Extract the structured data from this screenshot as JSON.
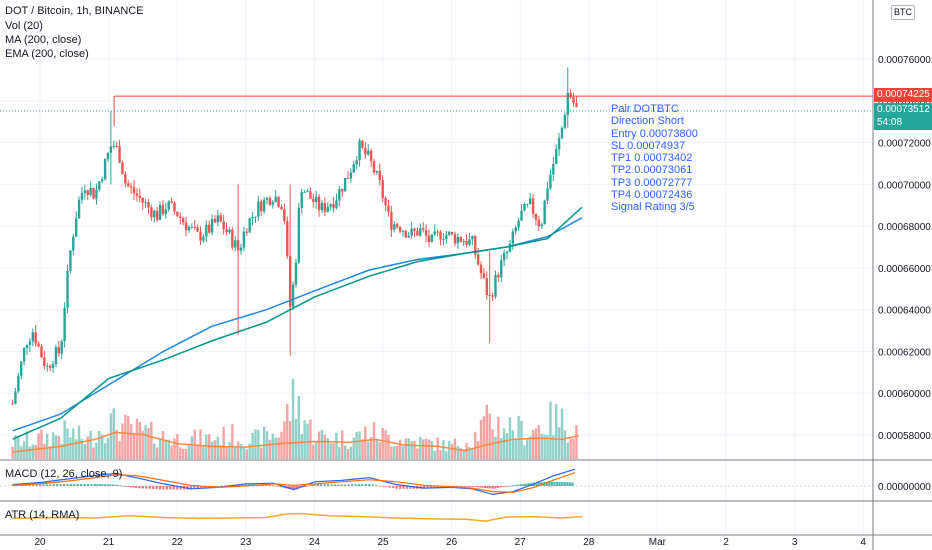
{
  "header": {
    "symbol_title": "DOT / Bitcoin, 1h, BINANCE",
    "indicators": [
      "Vol (20)",
      "MA (200, close)",
      "EMA (200, close)"
    ]
  },
  "currency_badge": "BTC",
  "signal_box": {
    "lines": [
      "Pair DOTBTC",
      "Direction Short",
      "Entry 0.00073800",
      "SL 0.00074937",
      "TP1 0.00073402",
      "TP2 0.00073061",
      "TP3 0.00072777",
      "TP4 0.00072436",
      "Signal Rating 3/5"
    ]
  },
  "price_tags": {
    "line_level": "0.00074225",
    "current": "0.00073512",
    "countdown": "54:08"
  },
  "colors": {
    "up": "#26a69a",
    "down": "#ef5350",
    "vol_up": "#8fd0c9",
    "vol_down": "#f5a3a2",
    "ma": "#1e88e5",
    "ema": "#009688",
    "vol_ma": "#ff8a3d",
    "macd": "#2962ff",
    "macd_signal": "#ff6d00",
    "atr": "#f9a825",
    "level_line": "#f44336",
    "current_line": "#26a69a",
    "signal_text": "#2962ff"
  },
  "sub_panes": {
    "macd_label": "MACD (12, 26, close, 9)",
    "macd_axis_label": "0.00000000",
    "atr_label": "ATR (14, RMA)"
  },
  "chart_data": [
    {
      "type": "candlestick",
      "title": "DOT / Bitcoin, 1h, BINANCE",
      "x_tick_labels": [
        "20",
        "21",
        "22",
        "23",
        "24",
        "25",
        "26",
        "27",
        "28",
        "Mar",
        "2",
        "3",
        "4"
      ],
      "y_tick_labels": [
        "0.00076000",
        "0.00074000",
        "0.00072000",
        "0.00070000",
        "0.00068000",
        "0.00066000",
        "0.00064000",
        "0.00062000",
        "0.00060000",
        "0.00058000"
      ],
      "ylim": [
        0.000569,
        0.000784
      ],
      "close_path": [
        [
          19.6,
          0.000595
        ],
        [
          19.7,
          0.00061
        ],
        [
          19.8,
          0.000625
        ],
        [
          19.9,
          0.00063
        ],
        [
          20.0,
          0.00062
        ],
        [
          20.1,
          0.000612
        ],
        [
          20.2,
          0.000618
        ],
        [
          20.3,
          0.00062
        ],
        [
          20.35,
          0.00064
        ],
        [
          20.45,
          0.00067
        ],
        [
          20.55,
          0.00069
        ],
        [
          20.65,
          0.0007
        ],
        [
          20.8,
          0.000695
        ],
        [
          20.95,
          0.00071
        ],
        [
          21.05,
          0.00072
        ],
        [
          21.15,
          0.000715
        ],
        [
          21.25,
          0.0007
        ],
        [
          21.4,
          0.000695
        ],
        [
          21.55,
          0.00069
        ],
        [
          21.7,
          0.000685
        ],
        [
          21.85,
          0.00069
        ],
        [
          22.0,
          0.000686
        ],
        [
          22.15,
          0.00068
        ],
        [
          22.3,
          0.000675
        ],
        [
          22.45,
          0.000678
        ],
        [
          22.6,
          0.000683
        ],
        [
          22.75,
          0.000676
        ],
        [
          22.9,
          0.000668
        ],
        [
          23.0,
          0.00068
        ],
        [
          23.2,
          0.00069
        ],
        [
          23.4,
          0.000695
        ],
        [
          23.55,
          0.00069
        ],
        [
          23.65,
          0.00064
        ],
        [
          23.72,
          0.00066
        ],
        [
          23.8,
          0.0007
        ],
        [
          23.9,
          0.000695
        ],
        [
          24.1,
          0.000688
        ],
        [
          24.3,
          0.000693
        ],
        [
          24.5,
          0.000705
        ],
        [
          24.65,
          0.000718
        ],
        [
          24.8,
          0.000712
        ],
        [
          24.95,
          0.0007
        ],
        [
          25.1,
          0.000682
        ],
        [
          25.25,
          0.00068
        ],
        [
          25.4,
          0.000676
        ],
        [
          25.55,
          0.000678
        ],
        [
          25.7,
          0.000672
        ],
        [
          25.85,
          0.000677
        ],
        [
          26.0,
          0.000675
        ],
        [
          26.15,
          0.000674
        ],
        [
          26.3,
          0.000672
        ],
        [
          26.45,
          0.000655
        ],
        [
          26.55,
          0.000645
        ],
        [
          26.7,
          0.00066
        ],
        [
          26.85,
          0.00067
        ],
        [
          27.0,
          0.000685
        ],
        [
          27.15,
          0.00069
        ],
        [
          27.3,
          0.00068
        ],
        [
          27.4,
          0.0007
        ],
        [
          27.5,
          0.000712
        ],
        [
          27.6,
          0.000725
        ],
        [
          27.7,
          0.000745
        ],
        [
          27.82,
          0.000736
        ]
      ],
      "series": [
        {
          "name": "MA (200, close)",
          "x": [
            19.6,
            20.3,
            21.0,
            21.8,
            22.5,
            23.3,
            24.0,
            24.8,
            25.5,
            26.2,
            26.8,
            27.4,
            27.9
          ],
          "values": [
            0.000582,
            0.00059,
            0.000604,
            0.00062,
            0.000632,
            0.00064,
            0.000649,
            0.000659,
            0.000664,
            0.000667,
            0.00067,
            0.000675,
            0.000684
          ]
        },
        {
          "name": "EMA (200, close)",
          "x": [
            19.6,
            20.3,
            21.0,
            21.8,
            22.5,
            23.3,
            24.0,
            24.8,
            25.5,
            26.2,
            26.8,
            27.4,
            27.9
          ],
          "values": [
            0.000578,
            0.000588,
            0.000607,
            0.000616,
            0.000625,
            0.000634,
            0.000646,
            0.000656,
            0.000663,
            0.000667,
            0.00067,
            0.000674,
            0.000689
          ]
        }
      ],
      "horizontal_levels": [
        {
          "value": 0.00074225,
          "from_x": 21.08
        },
        {
          "value": 0.00073512
        }
      ]
    },
    {
      "type": "bar",
      "title": "Vol (20)",
      "volume_profile": [
        [
          19.6,
          0.25
        ],
        [
          20.0,
          0.3
        ],
        [
          20.4,
          0.4
        ],
        [
          20.7,
          0.28
        ],
        [
          21.0,
          0.55
        ],
        [
          21.3,
          0.45
        ],
        [
          21.7,
          0.35
        ],
        [
          22.0,
          0.3
        ],
        [
          22.4,
          0.3
        ],
        [
          22.8,
          0.35
        ],
        [
          23.1,
          0.28
        ],
        [
          23.5,
          0.4
        ],
        [
          23.7,
          0.9
        ],
        [
          24.0,
          0.35
        ],
        [
          24.5,
          0.3
        ],
        [
          24.8,
          0.4
        ],
        [
          25.2,
          0.3
        ],
        [
          25.6,
          0.25
        ],
        [
          26.0,
          0.2
        ],
        [
          26.3,
          0.3
        ],
        [
          26.5,
          0.55
        ],
        [
          26.8,
          0.5
        ],
        [
          27.1,
          0.4
        ],
        [
          27.5,
          0.6
        ],
        [
          27.8,
          0.45
        ]
      ],
      "vol_ma_profile": [
        [
          19.6,
          0.1
        ],
        [
          20.3,
          0.18
        ],
        [
          20.8,
          0.28
        ],
        [
          21.1,
          0.38
        ],
        [
          21.5,
          0.35
        ],
        [
          22.0,
          0.22
        ],
        [
          22.5,
          0.18
        ],
        [
          23.0,
          0.17
        ],
        [
          23.5,
          0.22
        ],
        [
          24.0,
          0.25
        ],
        [
          24.5,
          0.24
        ],
        [
          24.9,
          0.28
        ],
        [
          25.3,
          0.2
        ],
        [
          25.8,
          0.18
        ],
        [
          26.2,
          0.12
        ],
        [
          26.5,
          0.2
        ],
        [
          26.9,
          0.28
        ],
        [
          27.3,
          0.3
        ],
        [
          27.6,
          0.28
        ],
        [
          27.85,
          0.33
        ]
      ]
    },
    {
      "type": "line",
      "title": "MACD (12, 26, close, 9)",
      "x": [
        19.6,
        20.0,
        20.4,
        20.8,
        21.1,
        21.4,
        21.8,
        22.2,
        22.6,
        23.0,
        23.4,
        23.7,
        24.0,
        24.4,
        24.8,
        25.2,
        25.6,
        26.0,
        26.3,
        26.6,
        26.9,
        27.2,
        27.5,
        27.8
      ],
      "series": [
        {
          "name": "MACD",
          "values": [
            0.2,
            0.5,
            1.0,
            1.5,
            1.8,
            1.2,
            0.3,
            -0.4,
            -0.2,
            0.3,
            0.4,
            -0.5,
            0.6,
            0.8,
            1.2,
            0.2,
            -0.3,
            -0.2,
            -0.4,
            -1.2,
            -0.8,
            0.3,
            1.5,
            2.4
          ]
        },
        {
          "name": "Signal",
          "values": [
            0.1,
            0.3,
            0.7,
            1.2,
            1.6,
            1.5,
            0.8,
            0.1,
            -0.2,
            0.0,
            0.3,
            0.1,
            0.3,
            0.6,
            0.9,
            0.6,
            0.1,
            -0.1,
            -0.3,
            -0.8,
            -0.9,
            -0.2,
            0.9,
            1.9
          ]
        }
      ],
      "histogram": [
        0.1,
        0.2,
        0.3,
        0.3,
        0.2,
        -0.3,
        -0.5,
        -0.5,
        0.0,
        0.3,
        0.1,
        -0.6,
        0.3,
        0.2,
        0.3,
        -0.4,
        -0.4,
        -0.1,
        -0.1,
        -0.4,
        0.1,
        0.5,
        0.6,
        0.5
      ]
    },
    {
      "type": "line",
      "title": "ATR (14, RMA)",
      "x": [
        19.6,
        20.2,
        20.8,
        21.3,
        21.8,
        22.3,
        22.8,
        23.3,
        23.6,
        23.8,
        24.2,
        24.7,
        25.2,
        25.7,
        26.2,
        26.5,
        26.8,
        27.2,
        27.6,
        27.9
      ],
      "series": [
        {
          "name": "ATR",
          "values": [
            0.4,
            0.5,
            0.45,
            0.7,
            0.5,
            0.4,
            0.45,
            0.5,
            0.9,
            0.95,
            0.7,
            0.6,
            0.45,
            0.35,
            0.3,
            0.1,
            0.55,
            0.6,
            0.45,
            0.6
          ]
        }
      ]
    }
  ]
}
